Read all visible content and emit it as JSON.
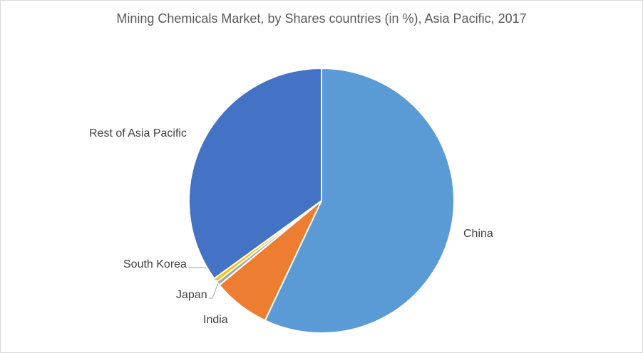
{
  "chart_data": {
    "type": "pie",
    "title": "Mining Chemicals Market, by  Shares countries (in %), Asia Pacific, 2017",
    "categories": [
      "China",
      "India",
      "Japan",
      "South Korea",
      "Rest of Asia Pacific"
    ],
    "values": [
      57,
      7,
      0.5,
      0.5,
      35
    ],
    "colors": [
      "#5b9bd5",
      "#ed7d31",
      "#a5a5a5",
      "#ffc000",
      "#4472c4"
    ]
  }
}
